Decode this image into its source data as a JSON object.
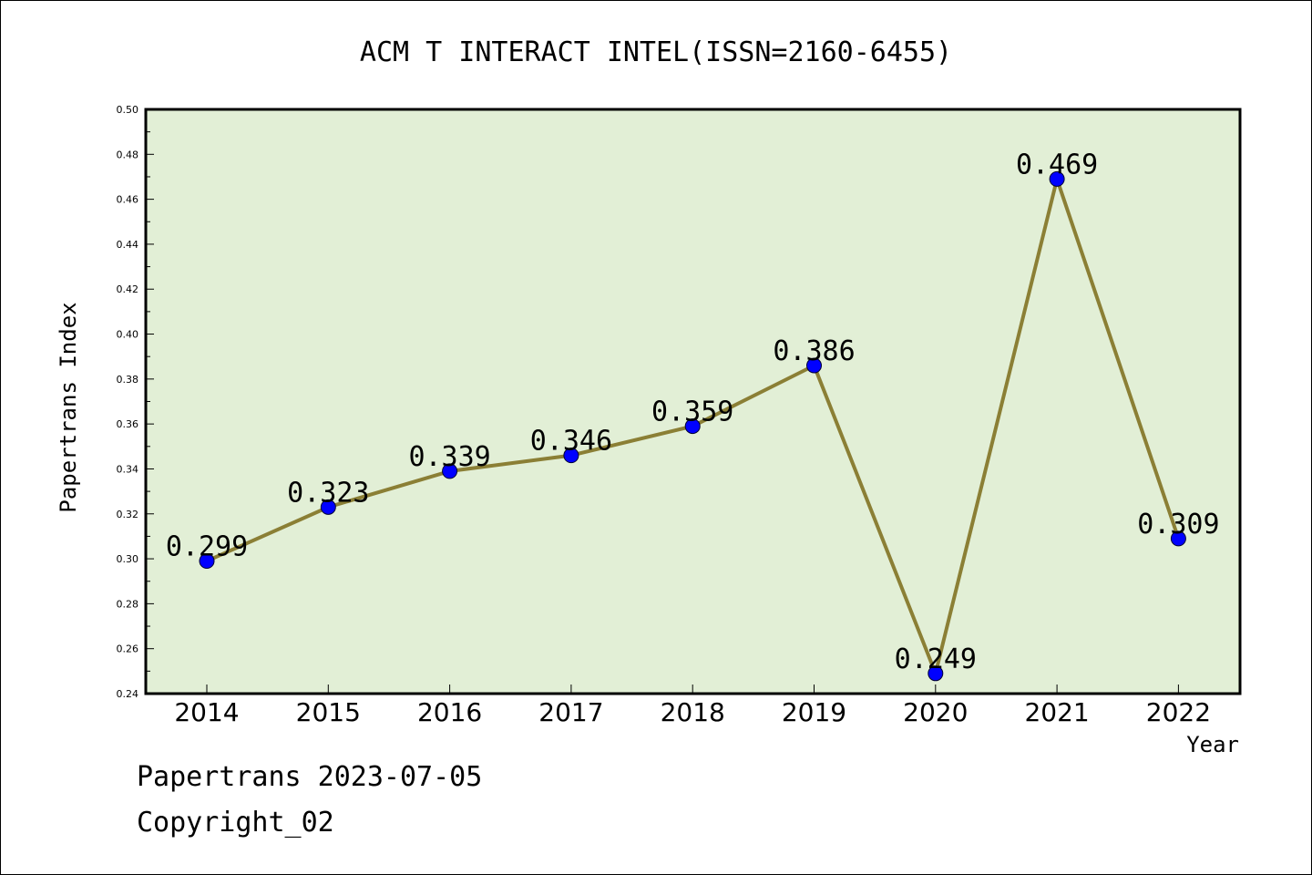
{
  "chart_data": {
    "type": "line",
    "title": "ACM T INTERACT INTEL(ISSN=2160-6455)",
    "xlabel": "Year",
    "ylabel": "Papertrans Index",
    "categories": [
      "2014",
      "2015",
      "2016",
      "2017",
      "2018",
      "2019",
      "2020",
      "2021",
      "2022"
    ],
    "series": [
      {
        "values": [
          0.299,
          0.323,
          0.339,
          0.346,
          0.359,
          0.386,
          0.249,
          0.469,
          0.309
        ],
        "labels": [
          "0.299",
          "0.323",
          "0.339",
          "0.346",
          "0.359",
          "0.386",
          "0.249",
          "0.469",
          "0.309"
        ]
      }
    ],
    "ylim": [
      0.24,
      0.5
    ],
    "yticks": [
      "0.24",
      "0.26",
      "0.28",
      "0.30",
      "0.32",
      "0.34",
      "0.36",
      "0.38",
      "0.40",
      "0.42",
      "0.44",
      "0.46",
      "0.48",
      "0.50"
    ],
    "grid": false,
    "colors": {
      "plot_background": "#e2efd6",
      "line": "#8b7f35",
      "marker": "#0000ff"
    }
  },
  "footer": {
    "line1": "Papertrans 2023-07-05",
    "line2": "Copyright_02"
  }
}
